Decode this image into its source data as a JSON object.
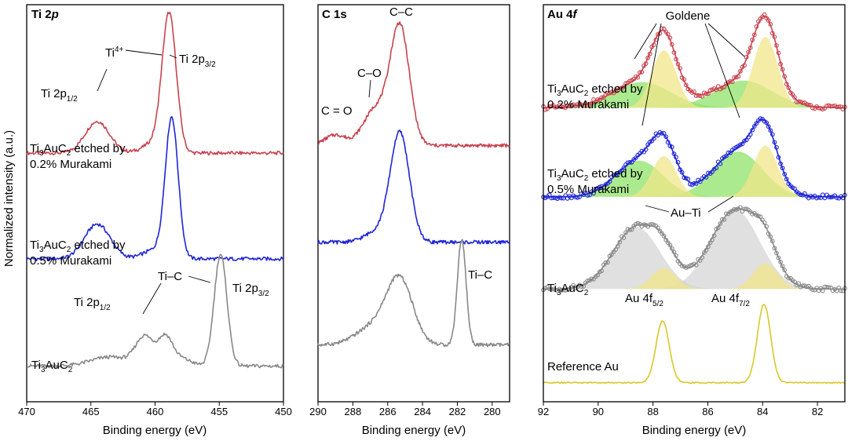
{
  "figure": {
    "ylabel": "Normalized intensity (a.u.)"
  },
  "colors": {
    "red": "#c8434f",
    "blue": "#1f25d6",
    "grey": "#888888",
    "greyLabel": "#a3a3a3",
    "redLabel": "#d0626a",
    "gold": "#d8c828",
    "goldLabel": "#d6c630",
    "compYellow": "#f0e58a",
    "compGreen": "#8fe36a",
    "compGrey": "#d5d5d5"
  },
  "chart_data": [
    {
      "type": "line",
      "id": "ti2p",
      "title": "Ti 2p",
      "xlabel": "Binding energy (eV)",
      "ylabel": "Normalized intensity (a.u.)",
      "xlim": [
        470,
        450
      ],
      "x_reversed": true,
      "ylim": [
        0,
        12.5
      ],
      "xticks": [
        "470",
        "465",
        "460",
        "455",
        "450"
      ],
      "grid": false,
      "series": [
        {
          "name": "Ti3AuC2 etched by 0.2% Murakami",
          "color_key": "red",
          "peaks": [
            {
              "center": 464.5,
              "amplitude": 1.05,
              "width": 0.95
            },
            {
              "center": 458.9,
              "amplitude": 4.5,
              "width": 0.55
            },
            {
              "center": 460.0,
              "amplitude": 0.35,
              "width": 0.9
            }
          ],
          "baseline": 8.05,
          "x": [
            470,
            468,
            466,
            465,
            464.5,
            464,
            463,
            462,
            461,
            460,
            459.5,
            459,
            458.9,
            458.5,
            458,
            457,
            456,
            454,
            452,
            450
          ],
          "y": [
            8.1,
            8.2,
            8.55,
            8.95,
            9.1,
            8.95,
            8.5,
            8.25,
            8.35,
            8.9,
            10.2,
            12.1,
            12.5,
            11.0,
            9.1,
            8.4,
            8.15,
            8.05,
            8.0,
            7.95
          ]
        },
        {
          "name": "Ti3AuC2 etched by 0.5% Murakami",
          "color_key": "blue",
          "peaks": [
            {
              "center": 464.5,
              "amplitude": 1.15,
              "width": 1.0
            },
            {
              "center": 458.7,
              "amplitude": 4.6,
              "width": 0.5
            },
            {
              "center": 460.0,
              "amplitude": 0.3,
              "width": 0.9
            }
          ],
          "baseline": 4.55,
          "x": [
            470,
            468,
            466,
            465,
            464.5,
            464,
            463,
            462,
            461,
            460,
            459.5,
            459,
            458.7,
            458.3,
            458,
            457,
            456,
            455,
            454.6,
            454,
            452,
            450
          ],
          "y": [
            4.6,
            4.7,
            5.05,
            5.5,
            5.65,
            5.5,
            5.0,
            4.75,
            4.85,
            5.3,
            6.6,
            8.2,
            9.2,
            7.8,
            5.9,
            4.95,
            4.7,
            4.65,
            4.75,
            4.6,
            4.5,
            4.4
          ]
        },
        {
          "name": "Ti3AuC2",
          "color_key": "grey",
          "peaks": [
            {
              "center": 460.8,
              "amplitude": 0.95,
              "width": 0.7
            },
            {
              "center": 459.2,
              "amplitude": 0.9,
              "width": 0.55
            },
            {
              "center": 454.9,
              "amplitude": 3.7,
              "width": 0.5
            },
            {
              "center": 463.5,
              "amplitude": 0.3,
              "width": 1.5
            },
            {
              "center": 458.0,
              "amplitude": 0.25,
              "width": 0.8
            }
          ],
          "baseline": 1.0,
          "x": [
            470,
            468,
            466,
            465,
            464,
            463,
            462,
            461,
            460.8,
            460.2,
            459.6,
            459.2,
            458.6,
            458,
            457,
            456,
            455.5,
            455,
            454.8,
            454.5,
            454,
            453,
            452,
            450
          ],
          "y": [
            1.0,
            1.05,
            1.2,
            1.4,
            1.6,
            1.75,
            1.9,
            2.3,
            2.5,
            2.05,
            2.35,
            2.45,
            1.75,
            1.75,
            2.1,
            2.7,
            3.6,
            4.3,
            4.75,
            3.8,
            1.4,
            0.95,
            0.9,
            0.85
          ]
        }
      ],
      "annotations": [
        {
          "id": "ti4",
          "text": "Ti",
          "sup": "4+"
        },
        {
          "id": "ti2p32_top",
          "text": "Ti 2p",
          "sub": "3/2"
        },
        {
          "id": "ti2p12_top",
          "text": "Ti 2p",
          "sub": "1/2"
        },
        {
          "id": "tic",
          "text": "Ti–C"
        },
        {
          "id": "ti2p12_bot",
          "text": "Ti 2p",
          "sub": "1/2"
        },
        {
          "id": "ti2p32_bot",
          "text": "Ti 2p",
          "sub": "3/2"
        }
      ],
      "series_labels": [
        {
          "id": "red",
          "line1_pre": "Ti",
          "line1_sub1": "3",
          "line1_mid": "AuC",
          "line1_sub2": "2",
          "line1_post": " etched by",
          "line2": "0.2% Murakami"
        },
        {
          "id": "blue",
          "line1_pre": "Ti",
          "line1_sub1": "3",
          "line1_mid": "AuC",
          "line1_sub2": "2",
          "line1_post": " etched by",
          "line2": "0.5% Murakami"
        },
        {
          "id": "grey",
          "line1_pre": "Ti",
          "line1_sub1": "3",
          "line1_mid": "AuC",
          "line1_sub2": "2"
        }
      ]
    },
    {
      "type": "line",
      "id": "c1s",
      "title": "C 1s",
      "xlabel": "Binding energy (eV)",
      "xlim": [
        290,
        279
      ],
      "x_reversed": true,
      "xticks": [
        "290",
        "288",
        "286",
        "284",
        "282",
        "280"
      ],
      "grid": false,
      "series": [
        {
          "name": "Ti3AuC2 etched by 0.2% Murakami",
          "color_key": "red",
          "peaks": [
            {
              "center": 285.3,
              "amplitude": 3.9,
              "width": 0.55
            },
            {
              "center": 286.7,
              "amplitude": 1.2,
              "width": 0.7
            },
            {
              "center": 289.0,
              "amplitude": 0.35,
              "width": 0.6
            }
          ],
          "baseline": 8.3
        },
        {
          "name": "Ti3AuC2 etched by 0.5% Murakami",
          "color_key": "blue",
          "peaks": [
            {
              "center": 285.3,
              "amplitude": 3.6,
              "width": 0.55
            },
            {
              "center": 286.6,
              "amplitude": 0.35,
              "width": 0.7
            }
          ],
          "baseline": 5.1
        },
        {
          "name": "Ti3AuC2",
          "color_key": "grey",
          "peaks": [
            {
              "center": 285.3,
              "amplitude": 2.1,
              "width": 0.75
            },
            {
              "center": 286.8,
              "amplitude": 0.6,
              "width": 1.0
            },
            {
              "center": 281.75,
              "amplitude": 3.5,
              "width": 0.25
            }
          ],
          "baseline": 1.7
        }
      ],
      "annotations": [
        {
          "id": "cc",
          "text": "C–C"
        },
        {
          "id": "co",
          "text": "C–O"
        },
        {
          "id": "ceqo",
          "text": "C = O"
        },
        {
          "id": "tic",
          "text": "Ti–C"
        }
      ]
    },
    {
      "type": "line",
      "id": "au4f",
      "title": "Au 4f",
      "xlabel": "Binding energy (eV)",
      "xlim": [
        92,
        81
      ],
      "x_reversed": true,
      "xticks": [
        "92",
        "90",
        "88",
        "86",
        "84",
        "82"
      ],
      "grid": false,
      "series": [
        {
          "name": "Ti3AuC2 etched by 0.2% Murakami",
          "color_key": "red",
          "markers": "open-circles",
          "components": [
            {
              "color_key": "compGreen",
              "center": 88.4,
              "amplitude": 0.85,
              "width": 1.05
            },
            {
              "color_key": "compGreen",
              "center": 84.7,
              "amplitude": 0.9,
              "width": 1.05
            },
            {
              "color_key": "compYellow",
              "center": 87.6,
              "amplitude": 1.9,
              "width": 0.45
            },
            {
              "color_key": "compYellow",
              "center": 83.9,
              "amplitude": 2.35,
              "width": 0.45
            }
          ],
          "baseline": 9.55
        },
        {
          "name": "Ti3AuC2 etched by 0.5% Murakami",
          "color_key": "blue",
          "markers": "open-circles",
          "components": [
            {
              "color_key": "compGreen",
              "center": 88.5,
              "amplitude": 1.2,
              "width": 0.85
            },
            {
              "color_key": "compGreen",
              "center": 84.9,
              "amplitude": 1.5,
              "width": 0.9
            },
            {
              "color_key": "compYellow",
              "center": 87.6,
              "amplitude": 1.35,
              "width": 0.45
            },
            {
              "color_key": "compYellow",
              "center": 83.9,
              "amplitude": 1.7,
              "width": 0.45
            }
          ],
          "baseline": 6.6
        },
        {
          "name": "Ti3AuC2",
          "color_key": "grey",
          "markers": "open-circles",
          "components": [
            {
              "color_key": "compGrey",
              "center": 88.6,
              "amplitude": 2.05,
              "width": 0.85
            },
            {
              "color_key": "compGrey",
              "center": 85.0,
              "amplitude": 2.6,
              "width": 0.9
            },
            {
              "color_key": "compYellow",
              "center": 87.6,
              "amplitude": 0.7,
              "width": 0.45
            },
            {
              "color_key": "compYellow",
              "center": 83.9,
              "amplitude": 0.85,
              "width": 0.45
            }
          ],
          "baseline": 3.55
        },
        {
          "name": "Reference Au",
          "color_key": "gold",
          "components": [
            {
              "color_key": "gold",
              "center": 87.65,
              "amplitude": 2.05,
              "width": 0.24
            },
            {
              "color_key": "gold",
              "center": 83.95,
              "amplitude": 2.6,
              "width": 0.24
            }
          ],
          "baseline": 0.45
        }
      ],
      "annotations": [
        {
          "id": "goldene",
          "text": "Goldene"
        },
        {
          "id": "auti",
          "text": "Au–Ti"
        },
        {
          "id": "au52",
          "text": "Au 4f",
          "sub": "5/2"
        },
        {
          "id": "au72",
          "text": "Au 4f",
          "sub": "7/2"
        }
      ],
      "series_labels": [
        {
          "id": "red",
          "line1_pre": "Ti",
          "line1_sub1": "3",
          "line1_mid": "AuC",
          "line1_sub2": "2",
          "line1_post": " etched by",
          "line2": "0.2% Murakami"
        },
        {
          "id": "blue",
          "line1_pre": "Ti",
          "line1_sub1": "3",
          "line1_mid": "AuC",
          "line1_sub2": "2",
          "line1_post": " etched by",
          "line2": "0.5% Murakami"
        },
        {
          "id": "grey",
          "line1_pre": "Ti",
          "line1_sub1": "3",
          "line1_mid": "AuC",
          "line1_sub2": "2"
        },
        {
          "id": "gold",
          "line1": "Reference Au"
        }
      ]
    }
  ]
}
